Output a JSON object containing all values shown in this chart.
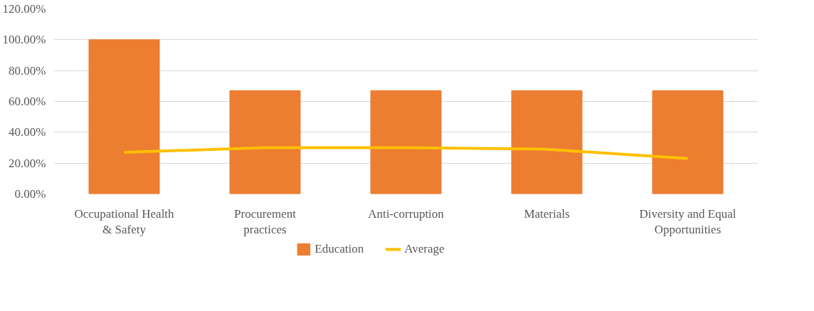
{
  "chart_data": {
    "type": "bar",
    "categories": [
      "Occupational Health & Safety",
      "Procurement practices",
      "Anti-corruption",
      "Materials",
      "Diversity and Equal Opportunities"
    ],
    "series": [
      {
        "name": "Education",
        "color": "#ed7d31",
        "values": [
          100,
          67,
          67,
          67,
          67
        ]
      },
      {
        "name": "Average",
        "type": "line",
        "color": "#ffc000",
        "values": [
          27,
          30,
          30,
          29,
          23
        ]
      }
    ],
    "ylim": [
      0,
      120
    ],
    "yticks": [
      {
        "value": 0,
        "label": "0.00%"
      },
      {
        "value": 20,
        "label": "20.00%"
      },
      {
        "value": 40,
        "label": "40.00%"
      },
      {
        "value": 60,
        "label": "60.00%"
      },
      {
        "value": 80,
        "label": "80.00%"
      },
      {
        "value": 100,
        "label": "100.00%"
      },
      {
        "value": 120,
        "label": "120.00%"
      }
    ],
    "grid": "y",
    "legend": "bottom",
    "marker": "none"
  }
}
